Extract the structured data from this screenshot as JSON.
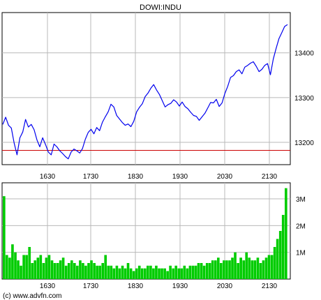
{
  "chart_data": [
    {
      "type": "line",
      "title": "DOWI:INDU",
      "x_ticks": [
        "1630",
        "1730",
        "1830",
        "1930",
        "2030",
        "2130"
      ],
      "y_ticks": [
        "13200",
        "13300",
        "13400"
      ],
      "ylim": [
        13150,
        13490
      ],
      "grid": true,
      "reference_line": {
        "value": 13182,
        "color": "#cc0000"
      },
      "line_color": "#0000ee",
      "series": [
        {
          "values": [
            13240,
            13256,
            13238,
            13232,
            13198,
            13172,
            13210,
            13223,
            13251,
            13234,
            13240,
            13228,
            13205,
            13190,
            13210,
            13195,
            13178,
            13172,
            13196,
            13190,
            13181,
            13175,
            13168,
            13163,
            13178,
            13185,
            13181,
            13176,
            13186,
            13207,
            13222,
            13229,
            13219,
            13233,
            13226,
            13245,
            13257,
            13268,
            13285,
            13279,
            13260,
            13252,
            13244,
            13238,
            13241,
            13235,
            13247,
            13268,
            13278,
            13286,
            13302,
            13310,
            13321,
            13329,
            13317,
            13307,
            13293,
            13279,
            13284,
            13287,
            13295,
            13290,
            13281,
            13290,
            13280,
            13275,
            13267,
            13260,
            13258,
            13249,
            13257,
            13265,
            13277,
            13289,
            13288,
            13296,
            13280,
            13288,
            13309,
            13325,
            13345,
            13349,
            13358,
            13362,
            13353,
            13368,
            13372,
            13377,
            13380,
            13370,
            13358,
            13363,
            13372,
            13376,
            13351,
            13386,
            13410,
            13432,
            13445,
            13459,
            13463
          ]
        }
      ]
    },
    {
      "type": "bar",
      "x_ticks": [
        "1630",
        "1730",
        "1830",
        "1930",
        "2030",
        "2130"
      ],
      "y_ticks": [
        "1M",
        "2M",
        "3M"
      ],
      "ylim": [
        0,
        3.6
      ],
      "unit": "M",
      "bar_color": "#00cc00",
      "series": [
        {
          "values": [
            3.1,
            0.9,
            0.8,
            1.3,
            1.0,
            0.7,
            0.5,
            0.9,
            0.9,
            1.2,
            0.6,
            0.7,
            0.8,
            0.9,
            0.6,
            0.8,
            0.9,
            0.7,
            0.6,
            0.6,
            0.7,
            0.8,
            0.5,
            0.6,
            0.7,
            0.6,
            0.5,
            0.7,
            0.6,
            0.5,
            0.6,
            0.7,
            0.6,
            0.5,
            0.5,
            0.6,
            0.9,
            0.5,
            0.5,
            0.4,
            0.5,
            0.4,
            0.5,
            0.4,
            0.6,
            0.4,
            0.3,
            0.4,
            0.5,
            0.4,
            0.4,
            0.5,
            0.5,
            0.4,
            0.5,
            0.4,
            0.4,
            0.4,
            0.3,
            0.5,
            0.4,
            0.5,
            0.4,
            0.4,
            0.5,
            0.4,
            0.5,
            0.5,
            0.5,
            0.6,
            0.6,
            0.5,
            0.6,
            0.6,
            0.7,
            0.7,
            0.8,
            0.6,
            0.7,
            0.7,
            0.7,
            0.8,
            1.0,
            0.6,
            0.8,
            0.7,
            1.0,
            0.8,
            0.7,
            0.7,
            0.8,
            0.6,
            0.7,
            0.8,
            0.9,
            0.9,
            1.2,
            1.5,
            1.8,
            2.4,
            3.4
          ]
        }
      ]
    }
  ],
  "footer": {
    "credit": "(c) www.advfn.com"
  }
}
